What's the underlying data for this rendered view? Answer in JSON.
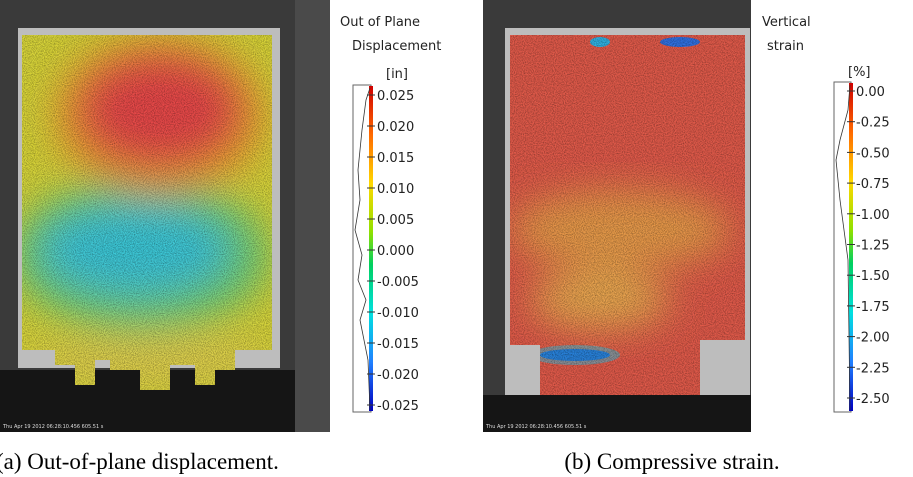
{
  "panels": [
    {
      "colorbar": {
        "title_lines": [
          "Out of Plane",
          "Displacement"
        ],
        "unit": "[in]",
        "ticks": [
          "0.025",
          "0.020",
          "0.015",
          "0.010",
          "0.005",
          "0.000",
          "-0.005",
          "-0.010",
          "-0.015",
          "-0.020",
          "-0.025"
        ]
      },
      "timestamp": "Thu Apr 19 2012 06:28:10.456 605.51 s",
      "caption": "(a) Out-of-plane displacement."
    },
    {
      "colorbar": {
        "title_lines": [
          "Vertical",
          "strain"
        ],
        "unit": "[%]",
        "ticks": [
          "0.00",
          "-0.25",
          "-0.50",
          "-0.75",
          "-1.00",
          "-1.25",
          "-1.50",
          "-1.75",
          "-2.00",
          "-2.25",
          "-2.50"
        ]
      },
      "timestamp": "Thu Apr 19 2012 06:28:10.456 605.51 s",
      "caption": "(b) Compressive strain."
    }
  ]
}
